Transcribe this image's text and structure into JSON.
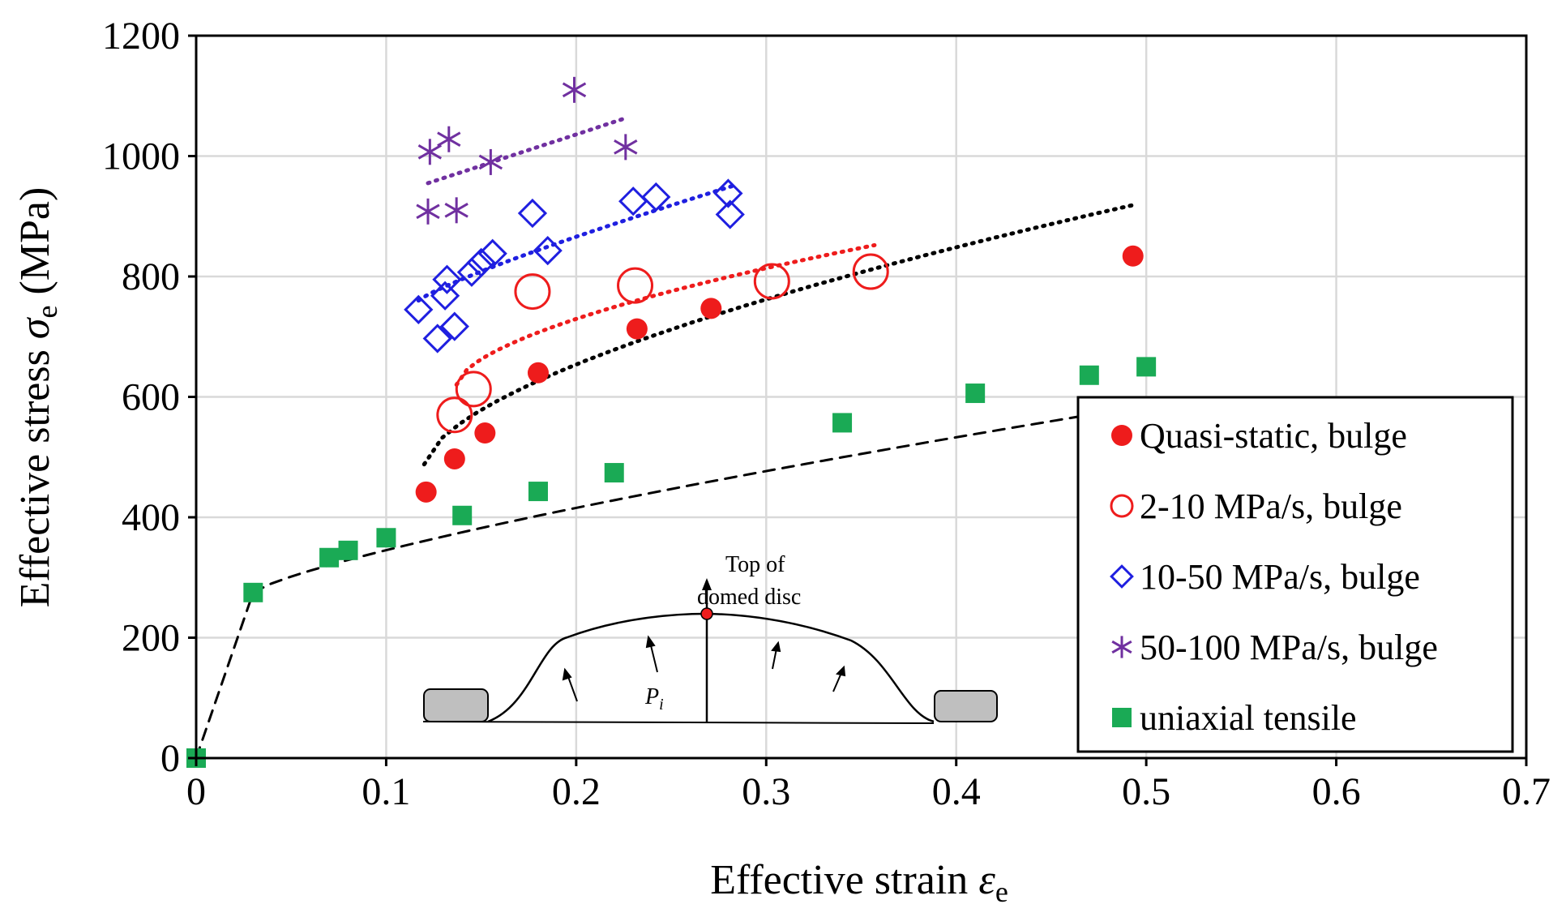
{
  "chart_data": {
    "type": "scatter",
    "title": "",
    "xlabel": "Effective strain",
    "xlabel_symbol": "ε",
    "xlabel_sub": "e",
    "ylabel": "Effective stress",
    "ylabel_symbol": "σ",
    "ylabel_sub": "e",
    "ylabel_unit": "(MPa)",
    "xlim": [
      0,
      0.7
    ],
    "ylim": [
      0,
      1200
    ],
    "x_ticks": [
      0,
      0.1,
      0.2,
      0.3,
      0.4,
      0.5,
      0.6,
      0.7
    ],
    "x_tick_labels": [
      "0",
      "0.1",
      "0.2",
      "0.3",
      "0.4",
      "0.5",
      "0.6",
      "0.7"
    ],
    "y_ticks": [
      0,
      200,
      400,
      600,
      800,
      1000,
      1200
    ],
    "y_tick_labels": [
      "0",
      "200",
      "400",
      "600",
      "800",
      "1000",
      "1200"
    ],
    "grid": true,
    "legend_position": "lower-right",
    "series": [
      {
        "name": "Quasi-static, bulge",
        "marker": "filled-circle",
        "color": "#ee1c1c",
        "points": [
          [
            0.121,
            442
          ],
          [
            0.136,
            497
          ],
          [
            0.152,
            540
          ],
          [
            0.18,
            640
          ],
          [
            0.232,
            713
          ],
          [
            0.271,
            747
          ],
          [
            0.493,
            834
          ]
        ],
        "trend": {
          "x": [
            0.12,
            0.495
          ],
          "coef": [
            -10.4,
            587.3,
            166.5
          ]
        }
      },
      {
        "name": "2-10 MPa/s, bulge",
        "marker": "open-circle",
        "color": "#ee1c1c",
        "points": [
          [
            0.136,
            570
          ],
          [
            0.146,
            613
          ],
          [
            0.177,
            775
          ],
          [
            0.231,
            785
          ],
          [
            0.303,
            792
          ],
          [
            0.355,
            808
          ]
        ],
        "trend": {
          "x": [
            0.137,
            0.357
          ],
          "coef": [
            -10.3,
            429.7,
            380.7
          ]
        }
      },
      {
        "name": "10-50 MPa/s, bulge",
        "marker": "open-diamond",
        "color": "#1f1fe0",
        "points": [
          [
            0.117,
            745
          ],
          [
            0.127,
            697
          ],
          [
            0.131,
            768
          ],
          [
            0.132,
            795
          ],
          [
            0.136,
            717
          ],
          [
            0.145,
            807
          ],
          [
            0.15,
            823
          ],
          [
            0.156,
            838
          ],
          [
            0.177,
            905
          ],
          [
            0.185,
            843
          ],
          [
            0.23,
            925
          ],
          [
            0.242,
            932
          ],
          [
            0.28,
            938
          ],
          [
            0.281,
            903
          ]
        ],
        "trend": {
          "x": [
            0.117,
            0.282
          ],
          "coef": [
            0,
            0,
            0
          ],
          "linear": [
            545.1,
            1394.6
          ]
        }
      },
      {
        "name": "50-100 MPa/s, bulge",
        "marker": "asterisk",
        "color": "#7030a0",
        "points": [
          [
            0.122,
            908
          ],
          [
            0.123,
            1007
          ],
          [
            0.133,
            1028
          ],
          [
            0.137,
            910
          ],
          [
            0.155,
            990
          ],
          [
            0.199,
            1110
          ],
          [
            0.226,
            1015
          ]
        ],
        "trend": {
          "x": [
            0.122,
            0.226
          ],
          "coef": [
            0,
            0,
            0
          ],
          "linear": [
            828.0,
            1030.0
          ]
        }
      },
      {
        "name": "uniaxial tensile",
        "marker": "filled-square",
        "color": "#1aaa55",
        "points": [
          [
            0,
            0
          ],
          [
            0.03,
            275
          ],
          [
            0.07,
            333
          ],
          [
            0.08,
            345
          ],
          [
            0.1,
            366
          ],
          [
            0.14,
            403
          ],
          [
            0.18,
            443
          ],
          [
            0.22,
            474
          ],
          [
            0.34,
            557
          ],
          [
            0.41,
            606
          ],
          [
            0.47,
            636
          ],
          [
            0.5,
            650
          ]
        ],
        "fit": {
          "x": [
            0.03,
            0.5
          ],
          "coef": [
            270.0,
            565.0,
            0.55
          ]
        }
      }
    ]
  },
  "inset": {
    "label_top": "Top of",
    "label_top2": "domed disc",
    "pressure_symbol": "P",
    "pressure_sub": "i"
  }
}
